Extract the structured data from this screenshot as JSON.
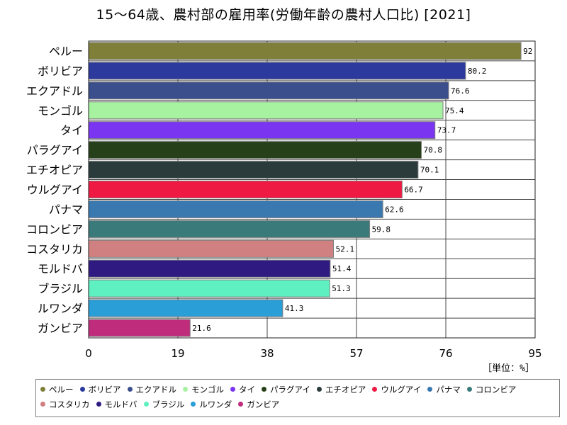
{
  "title": "15～64歳、農村部の雇用率(労働年齢の農村人口比) [2021]",
  "unit_label": "［単位：%］",
  "chart_data": {
    "type": "bar",
    "orientation": "horizontal",
    "title": "15～64歳、農村部の雇用率(労働年齢の農村人口比) [2021]",
    "xlim": [
      0,
      95
    ],
    "xticks": [
      0,
      19,
      38,
      57,
      76,
      95
    ],
    "grid": true,
    "legend_placement": "bottom",
    "categories": [
      "ペルー",
      "ボリビア",
      "エクアドル",
      "モンゴル",
      "タイ",
      "パラグアイ",
      "エチオピア",
      "ウルグアイ",
      "パナマ",
      "コロンビア",
      "コスタリカ",
      "モルドバ",
      "ブラジル",
      "ルワンダ",
      "ガンビア"
    ],
    "values": [
      92,
      80.2,
      76.6,
      75.4,
      73.7,
      70.8,
      70.1,
      66.7,
      62.6,
      59.8,
      52.1,
      51.4,
      51.3,
      41.3,
      21.6
    ],
    "value_labels": [
      "92",
      "80.2",
      "76.6",
      "75.4",
      "73.7",
      "70.8",
      "70.1",
      "66.7",
      "62.6",
      "59.8",
      "52.1",
      "51.4",
      "51.3",
      "41.3",
      "21.6"
    ],
    "colors": [
      "#7f7f3a",
      "#2b3a9c",
      "#3a4f8c",
      "#a6f2a0",
      "#7a35f0",
      "#26401a",
      "#2b3b3b",
      "#ee1a44",
      "#3a79b0",
      "#3a7a7a",
      "#d08080",
      "#2e1a80",
      "#5ef0c0",
      "#2a9ed6",
      "#c02c7c"
    ]
  }
}
